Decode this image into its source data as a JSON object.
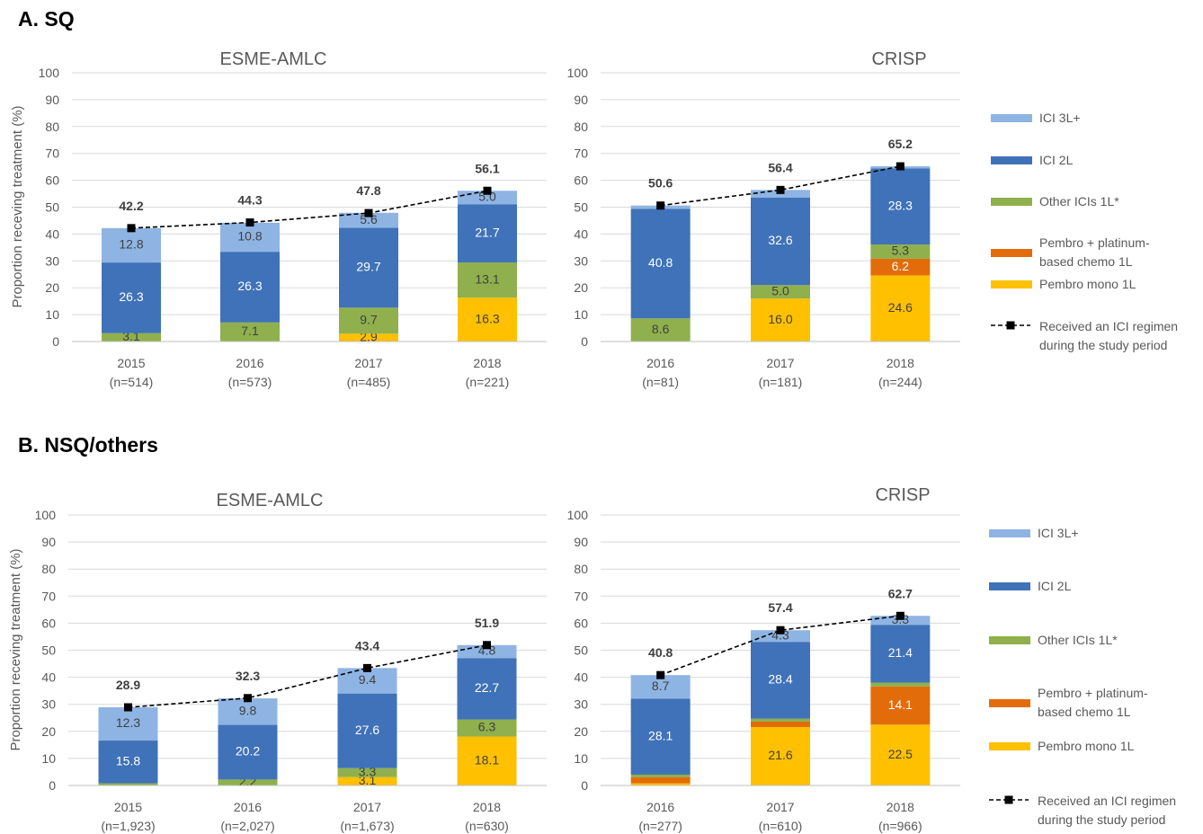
{
  "sections": [
    {
      "title": "A. SQ"
    },
    {
      "title": "B. NSQ/others"
    }
  ],
  "ylabel": "Proportion receving treatment (%)",
  "colors": {
    "ICI 3L+": "#8EB4E3",
    "ICI 2L": "#3F72B8",
    "Other ICIs 1L*": "#8FB04C",
    "Pembro + platinum-based chemo 1L": "#E36C0A",
    "Pembro mono 1L": "#FFC000"
  },
  "legend": {
    "items": [
      {
        "key": "ICI 3L+",
        "lines": [
          "ICI 3L+"
        ]
      },
      {
        "key": "ICI 2L",
        "lines": [
          "ICI 2L"
        ]
      },
      {
        "key": "Other ICIs 1L*",
        "lines": [
          "Other ICIs 1L*"
        ]
      },
      {
        "key": "Pembro + platinum-based chemo 1L",
        "lines": [
          "Pembro + platinum-",
          "based chemo 1L"
        ]
      },
      {
        "key": "Pembro mono 1L",
        "lines": [
          "Pembro mono 1L"
        ]
      }
    ],
    "line_label": [
      "Received an ICI regimen",
      "during the study period"
    ]
  },
  "chart_data": [
    {
      "type": "bar",
      "stacked": true,
      "title": "ESME-AMLC",
      "ylim": [
        0,
        100
      ],
      "yticks": [
        0,
        10,
        20,
        30,
        40,
        50,
        60,
        70,
        80,
        90,
        100
      ],
      "categories": [
        "2015",
        "2016",
        "2017",
        "2018"
      ],
      "n": [
        "(n=514)",
        "(n=573)",
        "(n=485)",
        "(n=221)"
      ],
      "series": [
        {
          "name": "Pembro mono 1L",
          "values": [
            0,
            0,
            2.9,
            16.3
          ],
          "labels": [
            "",
            "",
            "2.9",
            "16.3"
          ]
        },
        {
          "name": "Pembro + platinum-based chemo 1L",
          "values": [
            0,
            0,
            0,
            0
          ],
          "labels": [
            "",
            "",
            "",
            ""
          ]
        },
        {
          "name": "Other ICIs 1L*",
          "values": [
            3.1,
            7.1,
            9.7,
            13.1
          ],
          "labels": [
            "3.1",
            "7.1",
            "9.7",
            "13.1"
          ]
        },
        {
          "name": "ICI 2L",
          "values": [
            26.3,
            26.3,
            29.7,
            21.7
          ],
          "labels": [
            "26.3",
            "26.3",
            "29.7",
            "21.7"
          ]
        },
        {
          "name": "ICI 3L+",
          "values": [
            12.8,
            10.8,
            5.6,
            5.0
          ],
          "labels": [
            "12.8",
            "10.8",
            "5.6",
            "5.0"
          ]
        }
      ],
      "totals": [
        42.2,
        44.3,
        47.8,
        56.1
      ],
      "total_labels": [
        "42.2",
        "44.3",
        "47.8",
        "56.1"
      ]
    },
    {
      "type": "bar",
      "stacked": true,
      "title": "CRISP",
      "ylim": [
        0,
        100
      ],
      "yticks": [
        0,
        10,
        20,
        30,
        40,
        50,
        60,
        70,
        80,
        90,
        100
      ],
      "categories": [
        "2016",
        "2017",
        "2018"
      ],
      "n": [
        "(n=81)",
        "(n=181)",
        "(n=244)"
      ],
      "series": [
        {
          "name": "Pembro mono 1L",
          "values": [
            0,
            16.0,
            24.6
          ],
          "labels": [
            "",
            "16.0",
            "24.6"
          ]
        },
        {
          "name": "Pembro + platinum-based chemo 1L",
          "values": [
            0,
            0,
            6.2
          ],
          "labels": [
            "",
            "",
            "6.2"
          ]
        },
        {
          "name": "Other ICIs 1L*",
          "values": [
            8.6,
            5.0,
            5.3
          ],
          "labels": [
            "8.6",
            "5.0",
            "5.3"
          ]
        },
        {
          "name": "ICI 2L",
          "values": [
            40.8,
            32.6,
            28.3
          ],
          "labels": [
            "40.8",
            "32.6",
            "28.3"
          ]
        },
        {
          "name": "ICI 3L+",
          "values": [
            1.2,
            2.8,
            0.8
          ],
          "labels": [
            "",
            "",
            ""
          ]
        }
      ],
      "totals": [
        50.6,
        56.4,
        65.2
      ],
      "total_labels": [
        "50.6",
        "56.4",
        "65.2"
      ]
    },
    {
      "type": "bar",
      "stacked": true,
      "title": "ESME-AMLC",
      "ylim": [
        0,
        100
      ],
      "yticks": [
        0,
        10,
        20,
        30,
        40,
        50,
        60,
        70,
        80,
        90,
        100
      ],
      "categories": [
        "2015",
        "2016",
        "2017",
        "2018"
      ],
      "n": [
        "(n=1,923)",
        "(n=2,027)",
        "(n=1,673)",
        "(n=630)"
      ],
      "series": [
        {
          "name": "Pembro mono 1L",
          "values": [
            0,
            0,
            3.1,
            18.1
          ],
          "labels": [
            "",
            "",
            "3.1",
            "18.1"
          ]
        },
        {
          "name": "Pembro + platinum-based chemo 1L",
          "values": [
            0,
            0,
            0,
            0
          ],
          "labels": [
            "",
            "",
            "",
            ""
          ]
        },
        {
          "name": "Other ICIs 1L*",
          "values": [
            0.8,
            2.2,
            3.3,
            6.3
          ],
          "labels": [
            "",
            "2.2",
            "3.3",
            "6.3"
          ]
        },
        {
          "name": "ICI 2L",
          "values": [
            15.8,
            20.2,
            27.6,
            22.7
          ],
          "labels": [
            "15.8",
            "20.2",
            "27.6",
            "22.7"
          ]
        },
        {
          "name": "ICI 3L+",
          "values": [
            12.3,
            9.8,
            9.4,
            4.8
          ],
          "labels": [
            "12.3",
            "9.8",
            "9.4",
            "4.8"
          ]
        }
      ],
      "totals": [
        28.9,
        32.3,
        43.4,
        51.9
      ],
      "total_labels": [
        "28.9",
        "32.3",
        "43.4",
        "51.9"
      ]
    },
    {
      "type": "bar",
      "stacked": true,
      "title": "CRISP",
      "ylim": [
        0,
        100
      ],
      "yticks": [
        0,
        10,
        20,
        30,
        40,
        50,
        60,
        70,
        80,
        90,
        100
      ],
      "categories": [
        "2016",
        "2017",
        "2018"
      ],
      "n": [
        "(n=277)",
        "(n=610)",
        "(n=966)"
      ],
      "series": [
        {
          "name": "Pembro mono 1L",
          "values": [
            0.8,
            21.6,
            22.5
          ],
          "labels": [
            "",
            "21.6",
            "22.5"
          ]
        },
        {
          "name": "Pembro + platinum-based chemo 1L",
          "values": [
            2.2,
            2.0,
            14.1
          ],
          "labels": [
            "",
            "",
            "14.1"
          ]
        },
        {
          "name": "Other ICIs 1L*",
          "values": [
            1.0,
            1.1,
            1.4
          ],
          "labels": [
            "",
            "",
            ""
          ]
        },
        {
          "name": "ICI 2L",
          "values": [
            28.1,
            28.4,
            21.4
          ],
          "labels": [
            "28.1",
            "28.4",
            "21.4"
          ]
        },
        {
          "name": "ICI 3L+",
          "values": [
            8.7,
            4.3,
            3.3
          ],
          "labels": [
            "8.7",
            "4.3",
            "3.3"
          ]
        }
      ],
      "totals": [
        40.8,
        57.4,
        62.7
      ],
      "total_labels": [
        "40.8",
        "57.4",
        "62.7"
      ]
    }
  ]
}
